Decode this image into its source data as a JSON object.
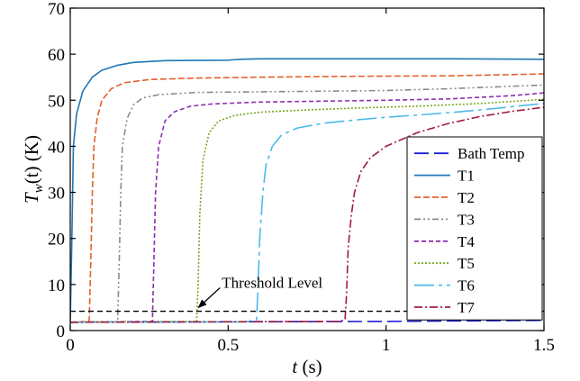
{
  "chart_data": {
    "type": "line",
    "xlabel_main": "t",
    "xlabel_unit": " (s)",
    "ylabel_main": "T",
    "ylabel_sub": "w",
    "ylabel_rest": "(t) (K)",
    "xlim": [
      0,
      1.5
    ],
    "ylim": [
      0,
      70
    ],
    "x_ticks": [
      0,
      0.5,
      1,
      1.5
    ],
    "x_tick_labels": [
      "0",
      "0.5",
      "1",
      "1.5"
    ],
    "y_ticks": [
      0,
      10,
      20,
      30,
      40,
      50,
      60,
      70
    ],
    "y_tick_labels": [
      "0",
      "10",
      "20",
      "30",
      "40",
      "50",
      "60",
      "70"
    ],
    "grid": false,
    "legend_position": "bottom-right",
    "threshold": {
      "y": 4.2,
      "label": "Threshold Level",
      "arrow_to": [
        0.4,
        4.6
      ]
    },
    "series": [
      {
        "name": "Bath Temp",
        "color": "#1f1fd6",
        "dash": "16,6",
        "points": [
          [
            0,
            1.8
          ],
          [
            0.5,
            1.9
          ],
          [
            1.0,
            2.0
          ],
          [
            1.5,
            2.2
          ]
        ]
      },
      {
        "name": "T1",
        "color": "#1f77b4",
        "dash": "",
        "points": [
          [
            0,
            2
          ],
          [
            0.005,
            20
          ],
          [
            0.01,
            40
          ],
          [
            0.02,
            47
          ],
          [
            0.04,
            52
          ],
          [
            0.07,
            55
          ],
          [
            0.1,
            56.5
          ],
          [
            0.15,
            57.6
          ],
          [
            0.2,
            58.2
          ],
          [
            0.3,
            58.6
          ],
          [
            0.5,
            58.7
          ],
          [
            0.54,
            58.9
          ],
          [
            0.6,
            59.0
          ],
          [
            0.8,
            59.0
          ],
          [
            1.0,
            59.0
          ],
          [
            1.2,
            59.0
          ],
          [
            1.5,
            58.9
          ]
        ]
      },
      {
        "name": "T2",
        "color": "#e2622c",
        "dash": "7,3",
        "points": [
          [
            0,
            1.8
          ],
          [
            0.06,
            2.0
          ],
          [
            0.065,
            15
          ],
          [
            0.07,
            30
          ],
          [
            0.075,
            40
          ],
          [
            0.085,
            46
          ],
          [
            0.1,
            50
          ],
          [
            0.13,
            52.5
          ],
          [
            0.17,
            53.8
          ],
          [
            0.25,
            54.5
          ],
          [
            0.4,
            54.8
          ],
          [
            0.6,
            55.0
          ],
          [
            0.9,
            55.2
          ],
          [
            1.2,
            55.3
          ],
          [
            1.5,
            55.7
          ]
        ]
      },
      {
        "name": "T3",
        "color": "#8a8a8a",
        "dash": "7,3,2,3,2,3",
        "points": [
          [
            0,
            1.8
          ],
          [
            0.15,
            1.9
          ],
          [
            0.155,
            15
          ],
          [
            0.16,
            30
          ],
          [
            0.165,
            40
          ],
          [
            0.18,
            46
          ],
          [
            0.2,
            49
          ],
          [
            0.23,
            50.5
          ],
          [
            0.28,
            51.2
          ],
          [
            0.4,
            51.7
          ],
          [
            0.7,
            51.9
          ],
          [
            1.0,
            52.1
          ],
          [
            1.2,
            52.5
          ],
          [
            1.5,
            53.3
          ]
        ]
      },
      {
        "name": "T4",
        "color": "#8f2fb0",
        "dash": "5,3",
        "points": [
          [
            0,
            1.8
          ],
          [
            0.26,
            2.0
          ],
          [
            0.265,
            15
          ],
          [
            0.27,
            30
          ],
          [
            0.28,
            40
          ],
          [
            0.3,
            45.5
          ],
          [
            0.33,
            47.5
          ],
          [
            0.38,
            48.7
          ],
          [
            0.45,
            49.2
          ],
          [
            0.6,
            49.6
          ],
          [
            0.8,
            49.8
          ],
          [
            1.0,
            50.0
          ],
          [
            1.2,
            50.3
          ],
          [
            1.4,
            51.0
          ],
          [
            1.5,
            51.6
          ]
        ]
      },
      {
        "name": "T5",
        "color": "#7aa61e",
        "dash": "2,2",
        "points": [
          [
            0,
            1.8
          ],
          [
            0.4,
            2.0
          ],
          [
            0.405,
            10
          ],
          [
            0.41,
            25
          ],
          [
            0.42,
            37
          ],
          [
            0.44,
            43
          ],
          [
            0.47,
            45.5
          ],
          [
            0.52,
            46.7
          ],
          [
            0.6,
            47.4
          ],
          [
            0.75,
            47.9
          ],
          [
            0.9,
            48.3
          ],
          [
            1.1,
            48.7
          ],
          [
            1.3,
            49.3
          ],
          [
            1.5,
            50.2
          ]
        ]
      },
      {
        "name": "T6",
        "color": "#4bbbe8",
        "dash": "22,5,4,5",
        "points": [
          [
            0,
            1.8
          ],
          [
            0.55,
            1.9
          ],
          [
            0.59,
            2.2
          ],
          [
            0.595,
            10
          ],
          [
            0.6,
            20
          ],
          [
            0.61,
            30
          ],
          [
            0.62,
            36
          ],
          [
            0.64,
            40
          ],
          [
            0.67,
            42.5
          ],
          [
            0.72,
            44
          ],
          [
            0.8,
            45
          ],
          [
            0.9,
            45.7
          ],
          [
            1.0,
            46.3
          ],
          [
            1.1,
            46.8
          ],
          [
            1.2,
            47.3
          ],
          [
            1.3,
            47.9
          ],
          [
            1.4,
            48.6
          ],
          [
            1.5,
            49.3
          ]
        ]
      },
      {
        "name": "T7",
        "color": "#a01b3c",
        "dash": "9,3,2,3",
        "points": [
          [
            0,
            1.8
          ],
          [
            0.85,
            2.0
          ],
          [
            0.87,
            2.3
          ],
          [
            0.875,
            8
          ],
          [
            0.88,
            18
          ],
          [
            0.89,
            25
          ],
          [
            0.9,
            30
          ],
          [
            0.92,
            34.5
          ],
          [
            0.95,
            37.5
          ],
          [
            1.0,
            40
          ],
          [
            1.1,
            43
          ],
          [
            1.2,
            45
          ],
          [
            1.3,
            46.5
          ],
          [
            1.4,
            47.6
          ],
          [
            1.5,
            48.5
          ]
        ]
      }
    ]
  }
}
